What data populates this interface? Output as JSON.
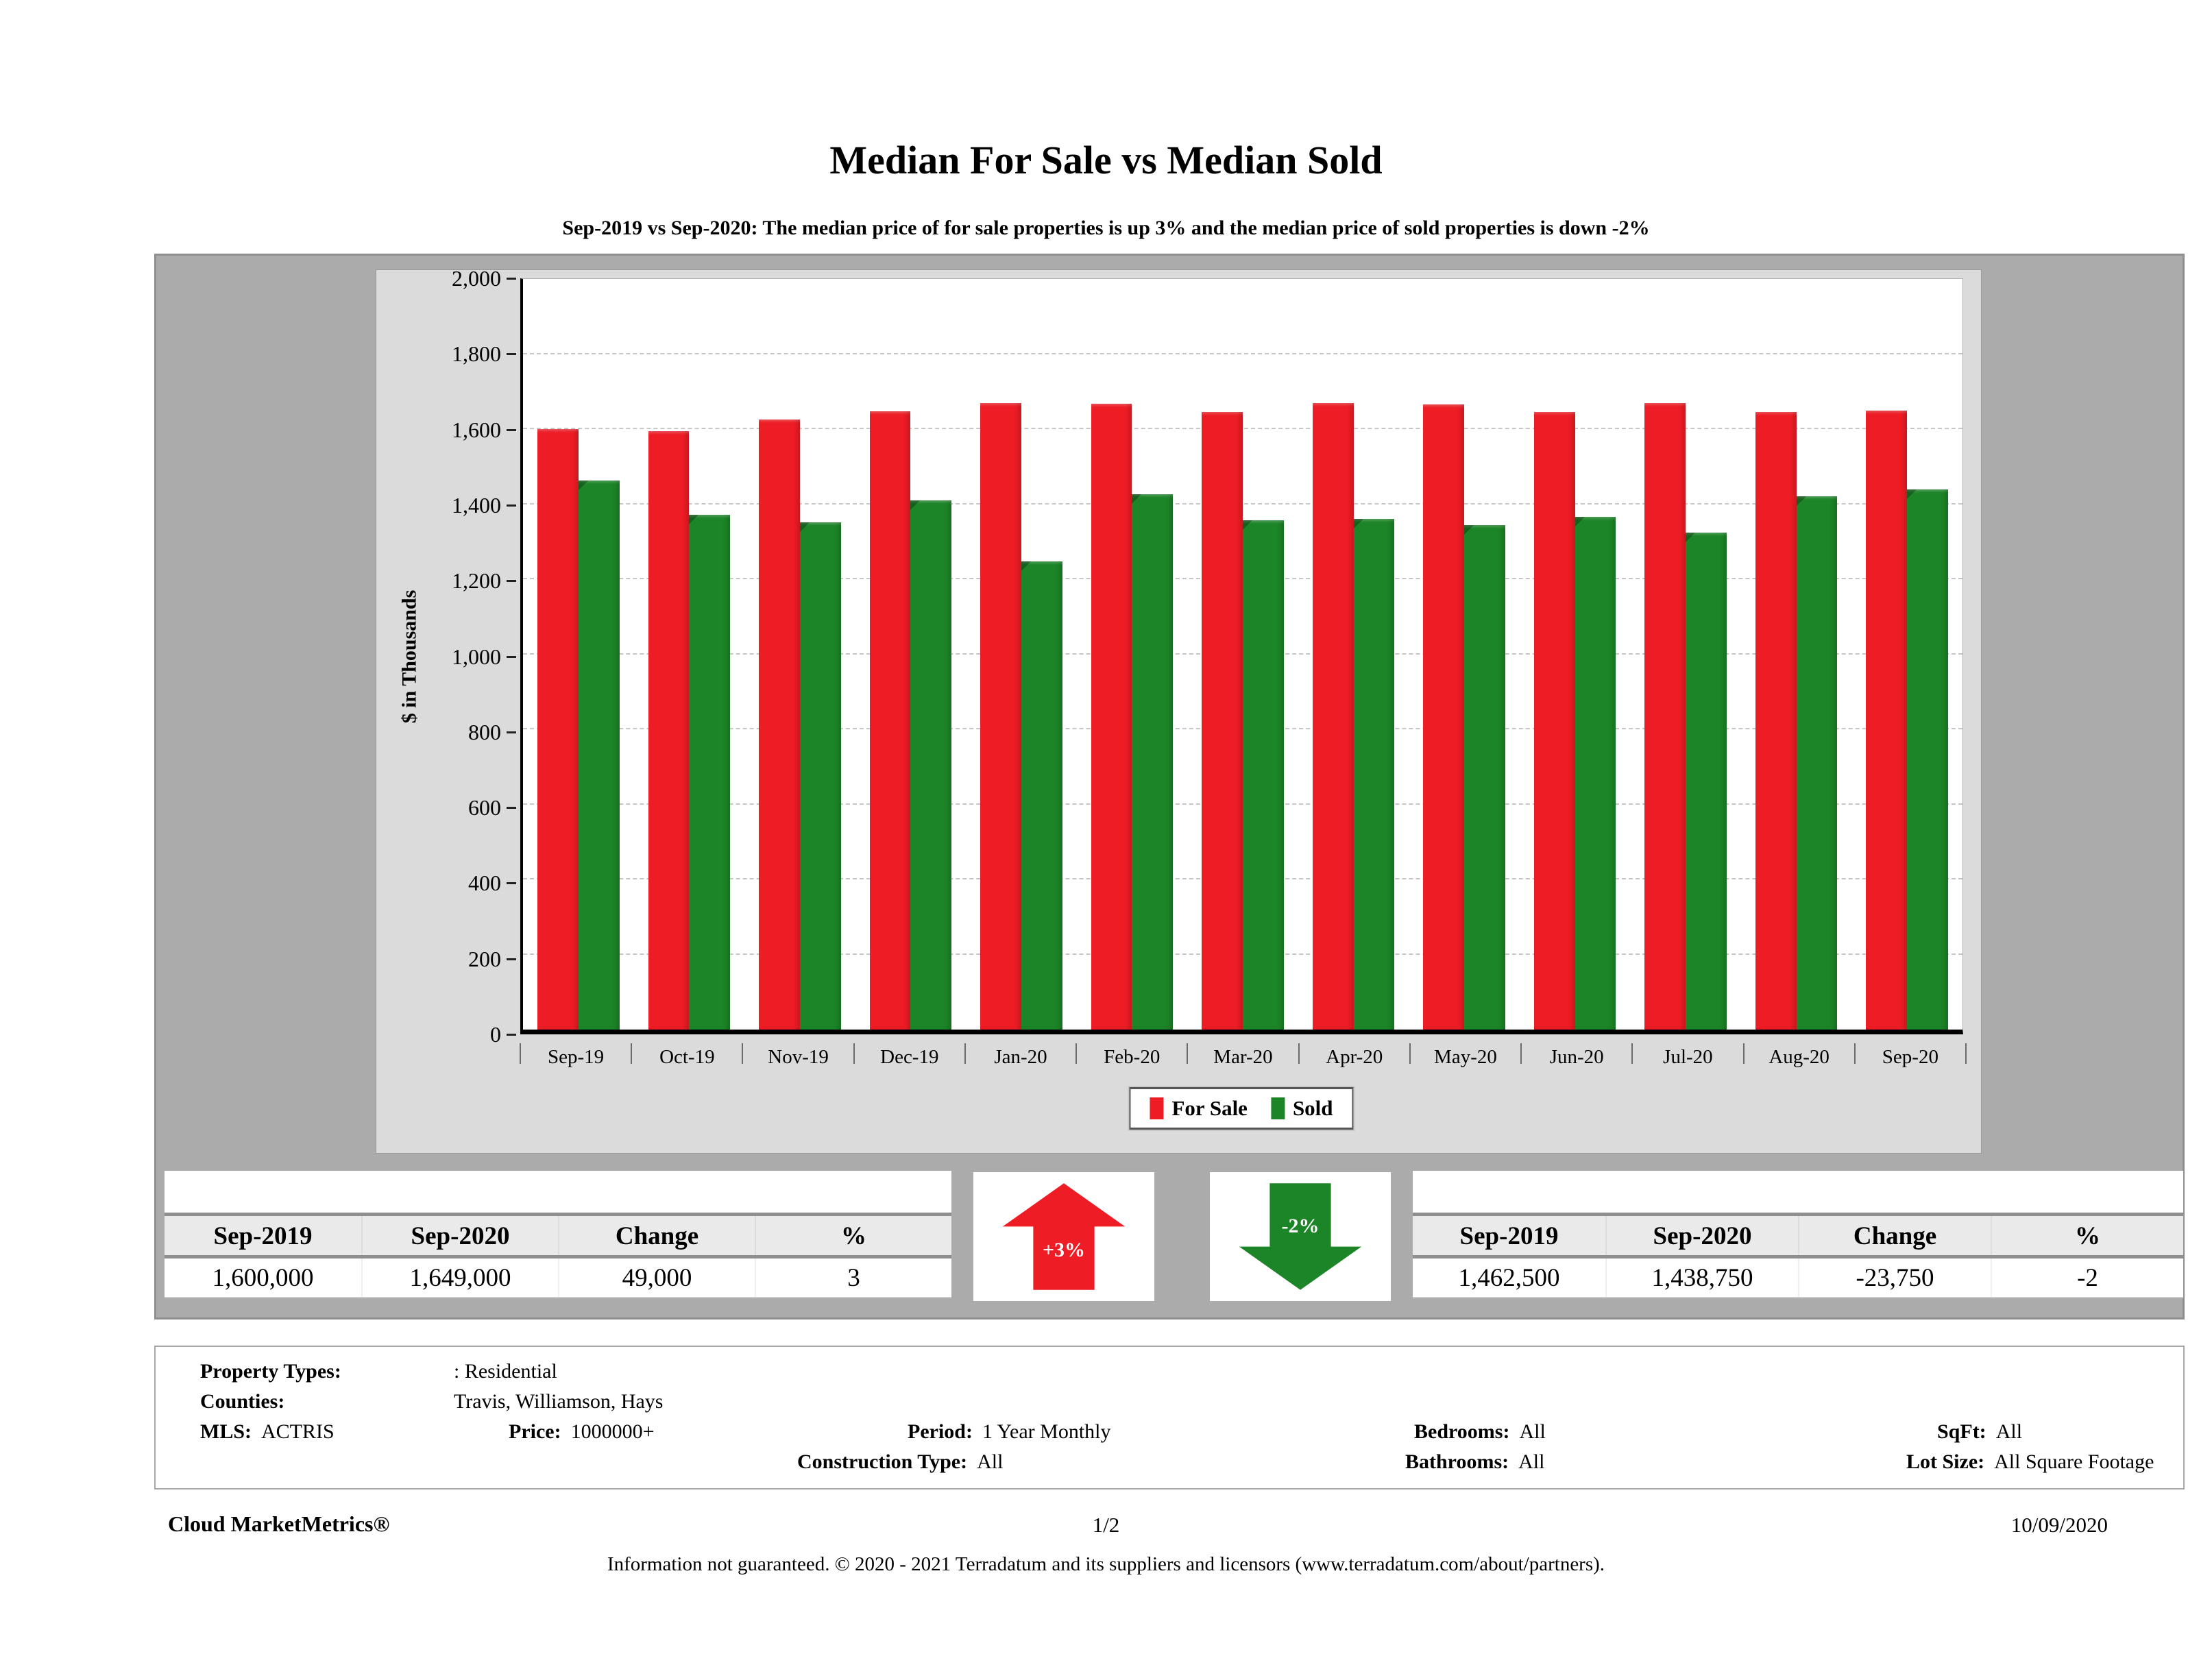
{
  "page": {
    "title": "Median For Sale vs Median Sold",
    "subtitle": "Sep-2019 vs Sep-2020: The median price of for sale properties is up 3% and the median price of sold properties is down -2%"
  },
  "chart_data": {
    "type": "bar",
    "title": "Median For Sale vs Median Sold",
    "ylabel": "$ in Thousands",
    "ylim": [
      0,
      2000
    ],
    "ytick_step": 200,
    "grid": "horizontal-dashed",
    "legend_position": "bottom-center",
    "units": "thousands of dollars",
    "categories": [
      "Sep-19",
      "Oct-19",
      "Nov-19",
      "Dec-19",
      "Jan-20",
      "Feb-20",
      "Mar-20",
      "Apr-20",
      "May-20",
      "Jun-20",
      "Jul-20",
      "Aug-20",
      "Sep-20"
    ],
    "series": [
      {
        "name": "For Sale",
        "color": "#ee1c25",
        "values": [
          1600,
          1595,
          1625,
          1647,
          1670,
          1667,
          1645,
          1670,
          1665,
          1646,
          1670,
          1645,
          1649
        ]
      },
      {
        "name": "Sold",
        "color": "#1c8527",
        "values": [
          1462.5,
          1372,
          1352,
          1410,
          1247,
          1427,
          1357,
          1360,
          1345,
          1366,
          1325,
          1421,
          1438.75
        ]
      }
    ]
  },
  "for_sale_table": {
    "headers": [
      "Sep-2019",
      "Sep-2020",
      "Change",
      "%"
    ],
    "row": [
      "1,600,000",
      "1,649,000",
      "49,000",
      "3"
    ]
  },
  "sold_table": {
    "headers": [
      "Sep-2019",
      "Sep-2020",
      "Change",
      "%"
    ],
    "row": [
      "1,462,500",
      "1,438,750",
      "-23,750",
      "-2"
    ]
  },
  "arrows": {
    "for_sale": {
      "label": "+3%",
      "direction": "up",
      "color": "#ee1c25"
    },
    "sold": {
      "label": "-2%",
      "direction": "down",
      "color": "#1c8527"
    }
  },
  "filters": {
    "property_types_label": "Property Types:",
    "property_types_value": ": Residential",
    "counties_label": "Counties:",
    "counties_value": "Travis, Williamson, Hays",
    "mls_label": "MLS:",
    "mls_value": "ACTRIS",
    "price_label": "Price:",
    "price_value": "1000000+",
    "period_label": "Period:",
    "period_value": "1 Year Monthly",
    "construction_type_label": "Construction Type:",
    "construction_type_value": "All",
    "bedrooms_label": "Bedrooms:",
    "bedrooms_value": "All",
    "bathrooms_label": "Bathrooms:",
    "bathrooms_value": "All",
    "sqft_label": "SqFt:",
    "sqft_value": "All",
    "lot_size_label": "Lot Size:",
    "lot_size_value": "All Square Footage"
  },
  "footer": {
    "brand": "Cloud MarketMetrics®",
    "page_number": "1/2",
    "date": "10/09/2020",
    "disclaimer": "Information not guaranteed. © 2020 - 2021 Terradatum and its suppliers and licensors (www.terradatum.com/about/partners)."
  }
}
